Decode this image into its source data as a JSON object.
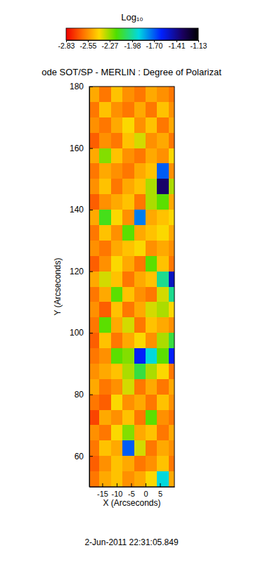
{
  "chart_data": {
    "type": "heatmap",
    "title": "ode SOT/SP - MERLIN : Degree of Polarizat",
    "x_label": "X (Arcseconds)",
    "y_label": "Y (Arcseconds)",
    "date": "2-Jun-2011 22:31:05.849",
    "xlim": [
      -19.5,
      10
    ],
    "ylim": [
      50,
      180
    ],
    "xticks": [
      -15,
      -10,
      -5,
      0,
      5
    ],
    "yticks": [
      60,
      80,
      100,
      120,
      140,
      160,
      180
    ],
    "x_edges": [
      -19.5,
      -16,
      -12,
      -8,
      -4,
      0,
      4,
      8,
      10
    ],
    "y_edges": [
      50,
      55,
      60,
      65,
      70,
      75,
      80,
      85,
      90,
      95,
      100,
      105,
      110,
      115,
      120,
      125,
      130,
      135,
      140,
      145,
      150,
      155,
      160,
      165,
      170,
      175,
      180
    ],
    "cells": [
      [
        -2.6,
        -2.5,
        -2.45,
        -2.55,
        -2.5,
        -2.4,
        -1.9,
        -2.5
      ],
      [
        -2.65,
        -2.55,
        -2.45,
        -2.5,
        -2.6,
        -2.55,
        -2.45,
        -2.6
      ],
      [
        -2.6,
        -2.45,
        -2.5,
        -1.7,
        -2.35,
        -2.6,
        -2.5,
        -2.55
      ],
      [
        -2.55,
        -2.6,
        -2.4,
        -2.25,
        -2.5,
        -2.45,
        -2.6,
        -2.5
      ],
      [
        -2.7,
        -2.5,
        -2.55,
        -2.45,
        -2.6,
        -2.2,
        -2.55,
        -2.6
      ],
      [
        -2.6,
        -2.65,
        -2.4,
        -2.55,
        -2.5,
        -2.6,
        -2.45,
        -2.55
      ],
      [
        -2.5,
        -2.6,
        -2.55,
        -2.35,
        -2.6,
        -2.5,
        -2.6,
        -2.5
      ],
      [
        -2.55,
        -2.5,
        -2.45,
        -2.3,
        -2.1,
        -2.3,
        -2.4,
        -2.6
      ],
      [
        -2.6,
        -2.55,
        -2.2,
        -2.25,
        -1.6,
        -1.9,
        -2.2,
        -1.6
      ],
      [
        -2.65,
        -2.45,
        -2.6,
        -2.5,
        -2.4,
        -2.55,
        -2.3,
        -2.1
      ],
      [
        -2.6,
        -2.2,
        -2.5,
        -2.35,
        -2.6,
        -2.45,
        -2.5,
        -2.55
      ],
      [
        -2.55,
        -2.65,
        -2.45,
        -2.6,
        -2.5,
        -2.35,
        -2.3,
        -2.4
      ],
      [
        -2.6,
        -2.5,
        -2.2,
        -2.45,
        -2.55,
        -2.6,
        -2.35,
        -2.0
      ],
      [
        -2.5,
        -2.35,
        -2.45,
        -2.6,
        -2.5,
        -2.45,
        -2.0,
        -1.5
      ],
      [
        -2.65,
        -2.55,
        -2.4,
        -2.5,
        -2.6,
        -2.2,
        -2.45,
        -2.6
      ],
      [
        -2.55,
        -2.6,
        -2.5,
        -2.45,
        -2.4,
        -2.55,
        -2.5,
        -2.55
      ],
      [
        -2.6,
        -2.45,
        -2.55,
        -2.2,
        -2.5,
        -2.45,
        -2.4,
        -2.5
      ],
      [
        -2.5,
        -2.15,
        -2.4,
        -2.55,
        -1.75,
        -2.5,
        -2.45,
        -2.4
      ],
      [
        -2.65,
        -2.55,
        -2.5,
        -2.45,
        -2.6,
        -2.3,
        -2.2,
        -2.5
      ],
      [
        -2.55,
        -2.45,
        -2.6,
        -2.5,
        -2.45,
        -2.3,
        -1.35,
        -2.3
      ],
      [
        -2.6,
        -2.5,
        -2.55,
        -2.6,
        -2.5,
        -2.45,
        -1.7,
        -2.55
      ],
      [
        -2.5,
        -2.25,
        -2.45,
        -2.55,
        -2.6,
        -2.5,
        -2.55,
        -2.4
      ],
      [
        -2.65,
        -2.55,
        -2.6,
        -2.45,
        -2.35,
        -2.55,
        -2.5,
        -2.6
      ],
      [
        -2.55,
        -2.6,
        -2.5,
        -2.4,
        -2.55,
        -2.45,
        -2.6,
        -2.5
      ],
      [
        -2.6,
        -2.45,
        -2.55,
        -2.6,
        -2.5,
        -2.6,
        -2.45,
        -2.55
      ],
      [
        -2.5,
        -2.6,
        -2.45,
        -2.55,
        -2.6,
        -2.5,
        -2.55,
        -2.6
      ]
    ],
    "colorbar_title": "Log₁₀",
    "colorbar_range": [
      -2.83,
      -1.13
    ],
    "colorbar_ticks": [
      -2.83,
      -2.55,
      -2.27,
      -1.98,
      {
        "value": -1.7,
        "label": "-1.70"
      },
      -1.41,
      -1.13
    ]
  }
}
